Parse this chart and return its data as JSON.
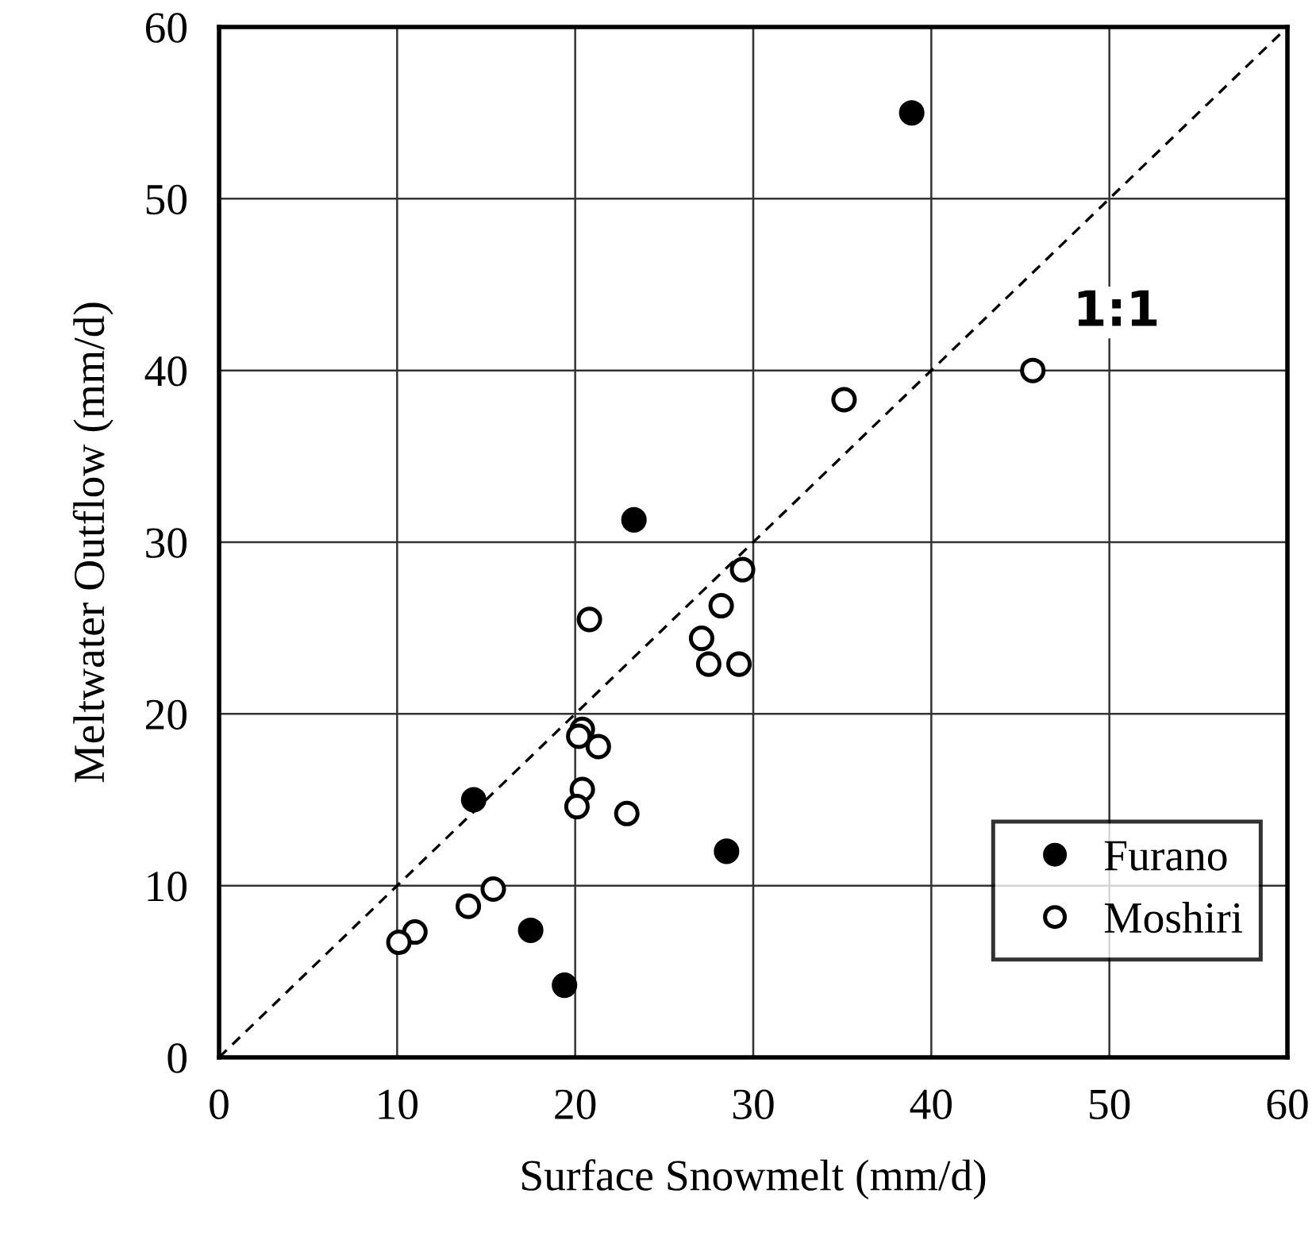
{
  "chart_data": {
    "type": "scatter",
    "xlabel": "Surface Snowmelt (mm/d)",
    "ylabel": "Meltwater Outflow (mm/d)",
    "xlim": [
      0,
      60
    ],
    "xticks": [
      0,
      10,
      20,
      30,
      40,
      50,
      60
    ],
    "ylim": [
      0,
      60
    ],
    "yticks": [
      0,
      10,
      20,
      30,
      40,
      50,
      60
    ],
    "grid": true,
    "legend": "bottom right",
    "marker": "circle",
    "series": [
      {
        "name": "Furano",
        "color": "#000000",
        "x": [
          38.9,
          23.3,
          14.3,
          28.5,
          17.5,
          19.4
        ],
        "values": [
          55.0,
          31.3,
          15.0,
          12.0,
          7.4,
          4.2
        ]
      },
      {
        "name": "Moshiri",
        "color": "#ffffff",
        "x": [
          35.1,
          45.7,
          29.4,
          20.8,
          28.2,
          27.1,
          27.5,
          29.2,
          20.4,
          20.2,
          21.3,
          20.4,
          20.1,
          22.9,
          15.4,
          14.0,
          11.0,
          10.1
        ],
        "values": [
          38.3,
          40.0,
          28.4,
          25.5,
          26.3,
          24.4,
          22.9,
          22.9,
          19.1,
          18.7,
          18.1,
          15.6,
          14.6,
          14.2,
          9.8,
          8.8,
          7.3,
          6.7
        ]
      },
      {
        "type": "line",
        "color": "#000000",
        "line_style": "dashed",
        "marker": "none",
        "x": [
          0,
          60
        ],
        "values": [
          0,
          60
        ]
      }
    ],
    "annotations": [
      "1:1"
    ]
  }
}
